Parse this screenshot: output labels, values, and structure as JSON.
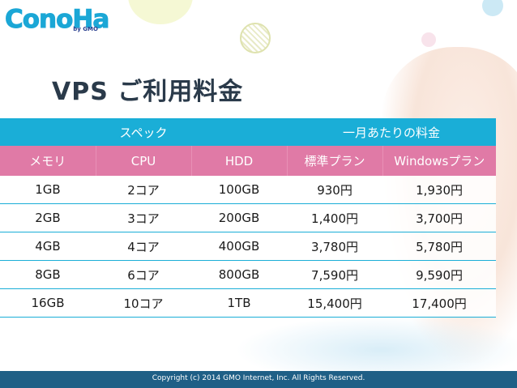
{
  "logo": {
    "main": "ConoHa",
    "sub": "by GMO"
  },
  "title": "VPS ご利用料金",
  "table": {
    "group_headers": {
      "spec": "スペック",
      "monthly": "一月あたりの料金"
    },
    "columns": [
      "メモリ",
      "CPU",
      "HDD",
      "標準プラン",
      "Windowsプラン"
    ],
    "rows": [
      [
        "1GB",
        "2コア",
        "100GB",
        "930円",
        "1,930円"
      ],
      [
        "2GB",
        "3コア",
        "200GB",
        "1,400円",
        "3,700円"
      ],
      [
        "4GB",
        "4コア",
        "400GB",
        "3,780円",
        "5,780円"
      ],
      [
        "8GB",
        "6コア",
        "800GB",
        "7,590円",
        "9,590円"
      ],
      [
        "16GB",
        "10コア",
        "1TB",
        "15,400円",
        "17,400円"
      ]
    ]
  },
  "footer": {
    "copyright": "Copyright (c) 2014 GMO Internet, Inc. All Rights Reserved."
  },
  "colors": {
    "header_blue": "#1aaed7",
    "header_pink": "#e07aa6",
    "footer": "#1f5f86",
    "title": "#2a3a4a"
  }
}
